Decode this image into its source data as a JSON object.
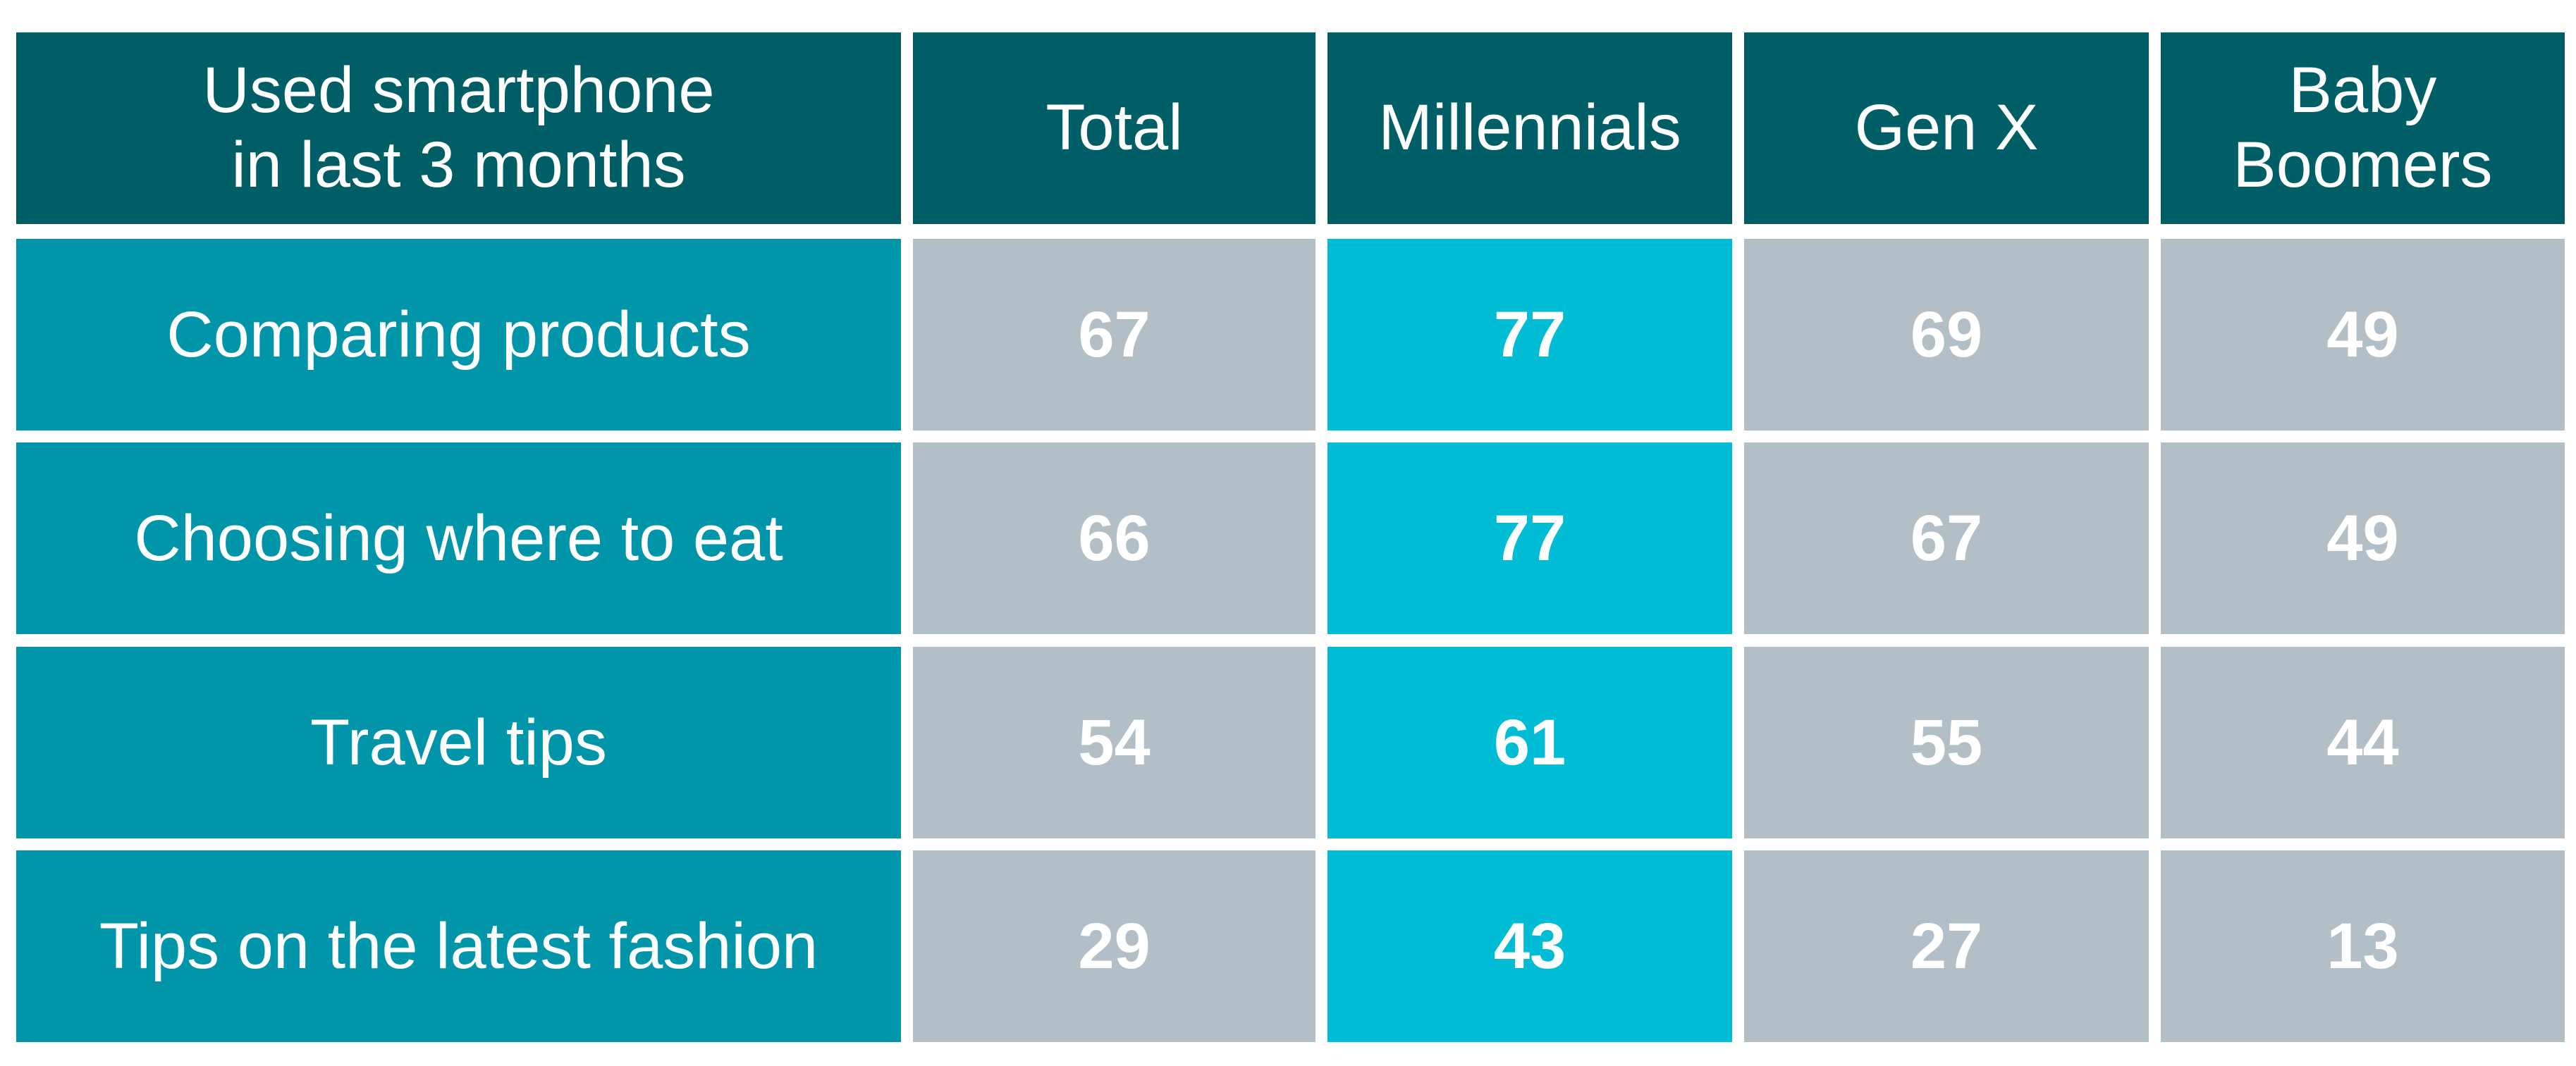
{
  "colors": {
    "header_bg": "#005f66",
    "label_bg": "#0095a8",
    "value_bg": "#b3bfc6",
    "highlight_bg": "#00bcd4",
    "text": "#ffffff"
  },
  "chart_data": {
    "type": "table",
    "highlight_column": "Millennials",
    "columns": [
      "Used smartphone\nin last 3 months",
      "Total",
      "Millennials",
      "Gen X",
      "Baby\nBoomers"
    ],
    "rows": [
      {
        "label": "Comparing products",
        "values": [
          67,
          77,
          69,
          49
        ]
      },
      {
        "label": "Choosing where to eat",
        "values": [
          66,
          77,
          67,
          49
        ]
      },
      {
        "label": "Travel tips",
        "values": [
          54,
          61,
          55,
          44
        ]
      },
      {
        "label": "Tips on the latest fashion",
        "values": [
          29,
          43,
          27,
          13
        ]
      }
    ]
  }
}
